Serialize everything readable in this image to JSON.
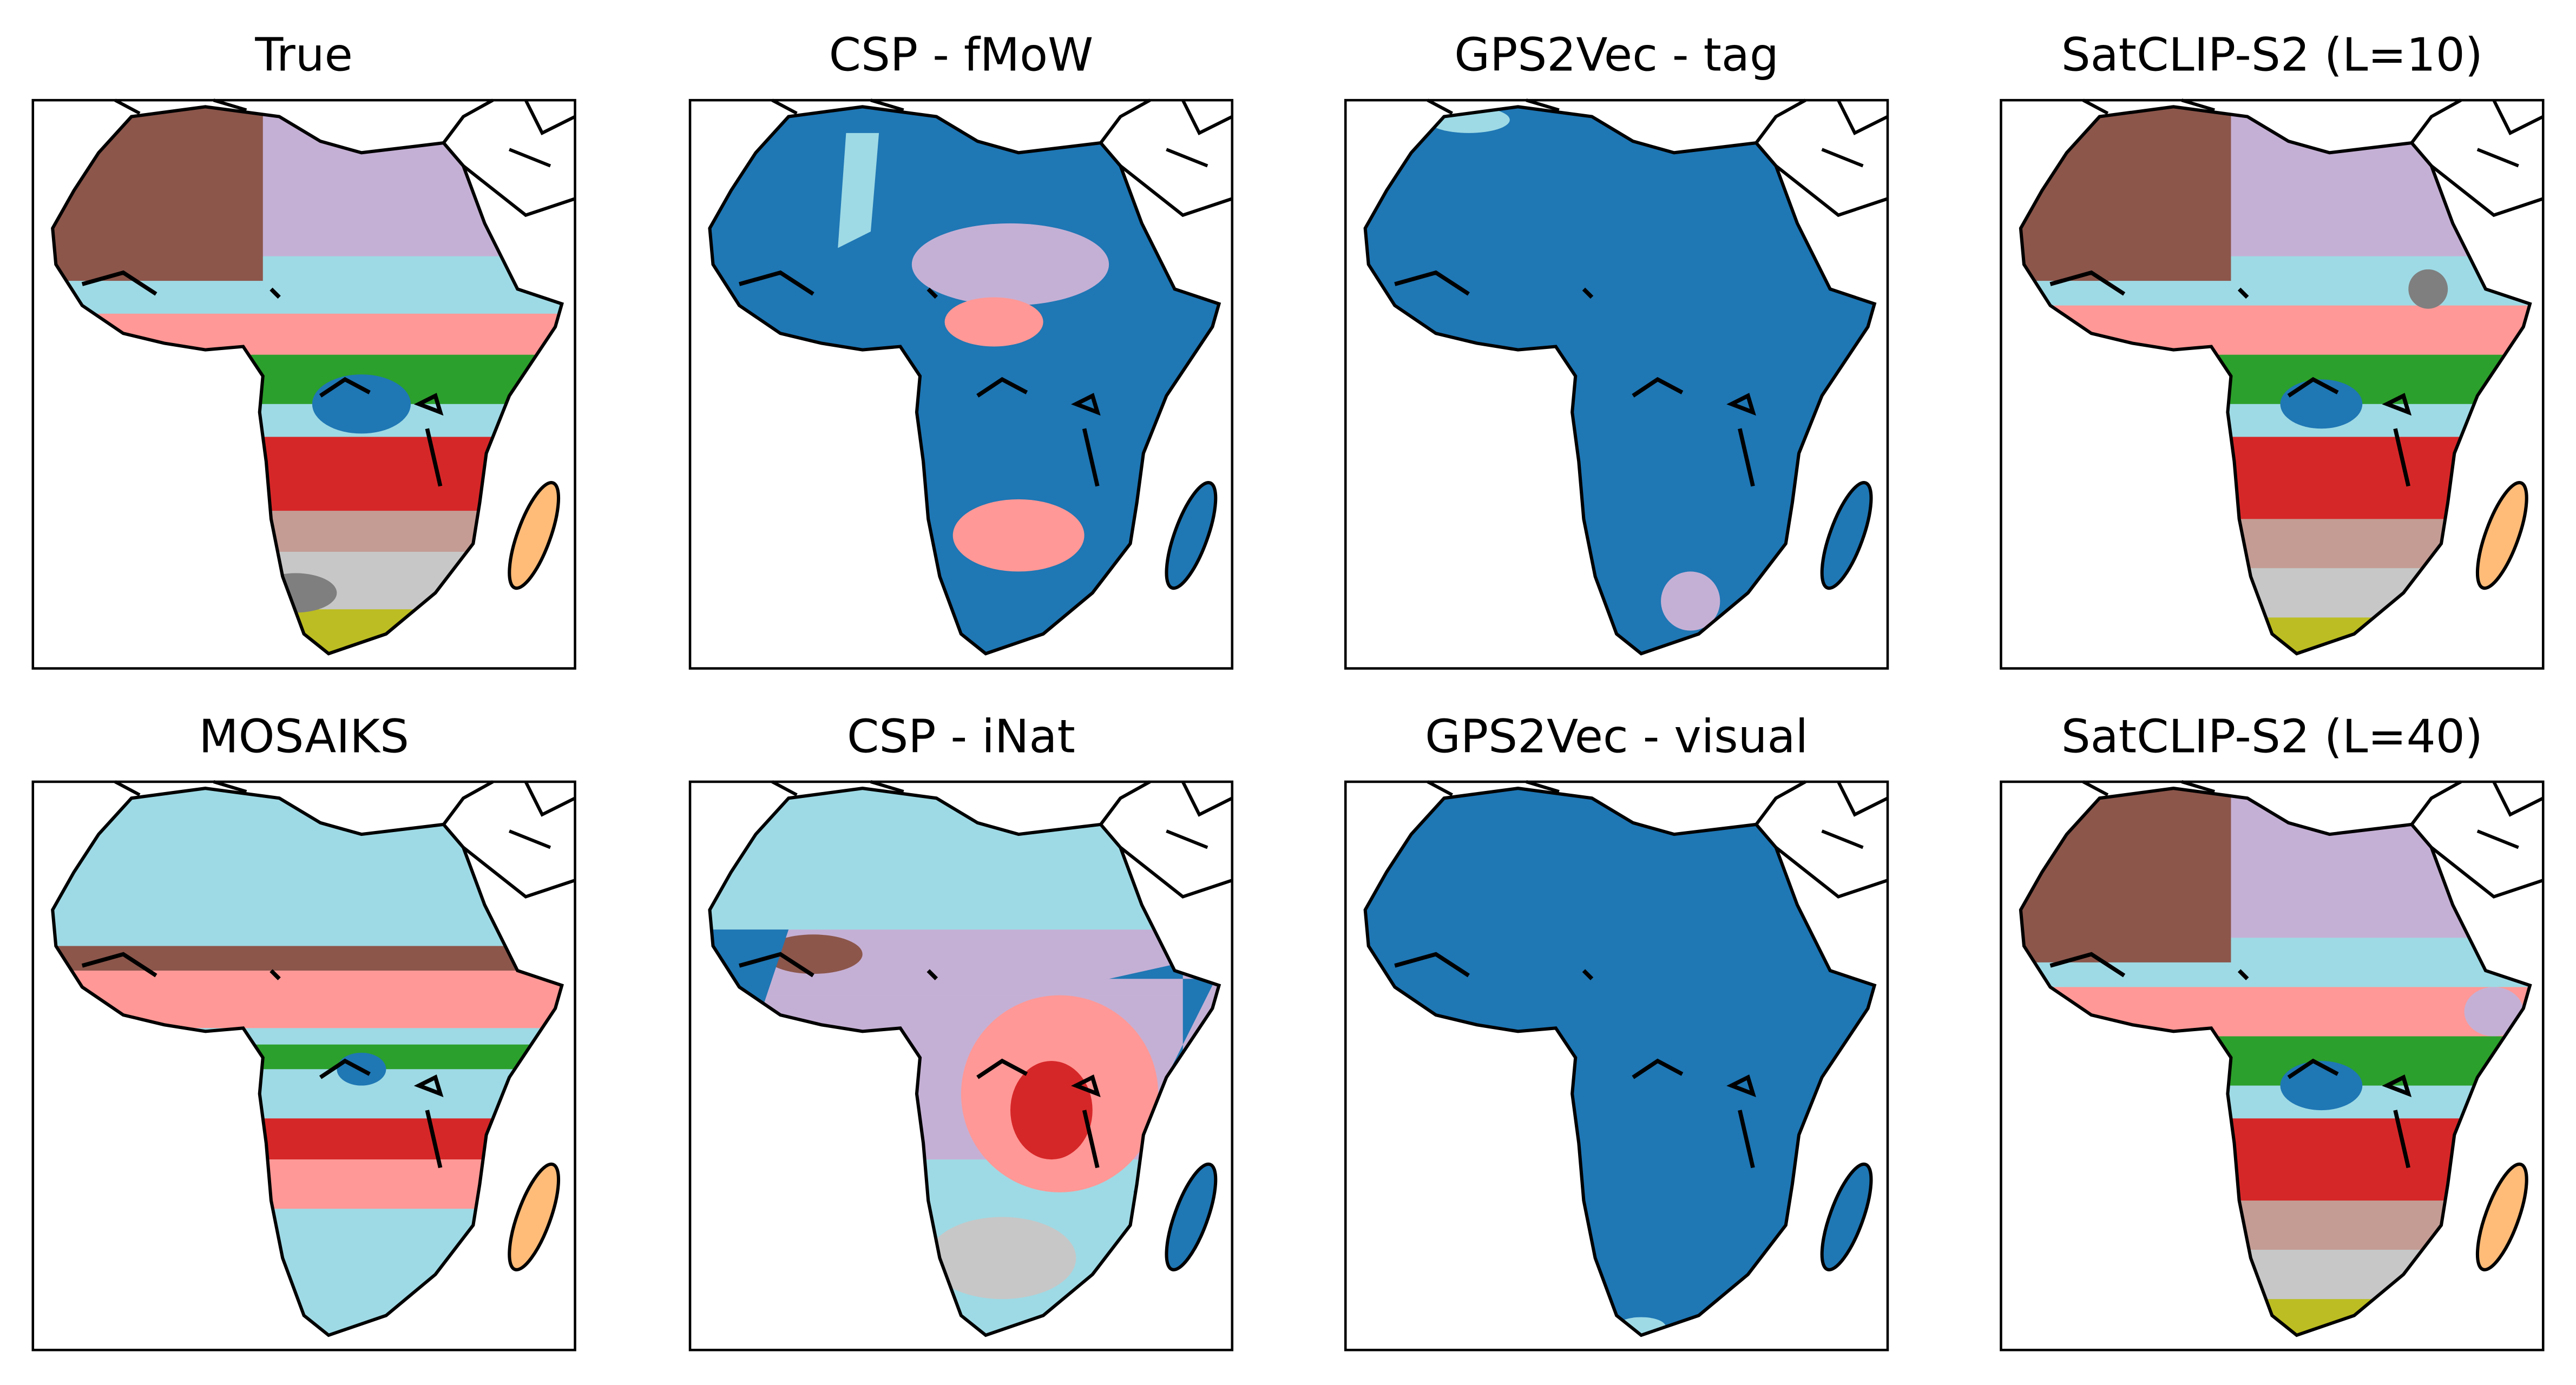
{
  "panels": [
    {
      "title": "True"
    },
    {
      "title": "CSP - fMoW"
    },
    {
      "title": "GPS2Vec - tag"
    },
    {
      "title": "SatCLIP-S2 (L=10)"
    },
    {
      "title": "MOSAIKS"
    },
    {
      "title": "CSP - iNat"
    },
    {
      "title": "GPS2Vec - visual"
    },
    {
      "title": "SatCLIP-S2 (L=40)"
    }
  ]
}
